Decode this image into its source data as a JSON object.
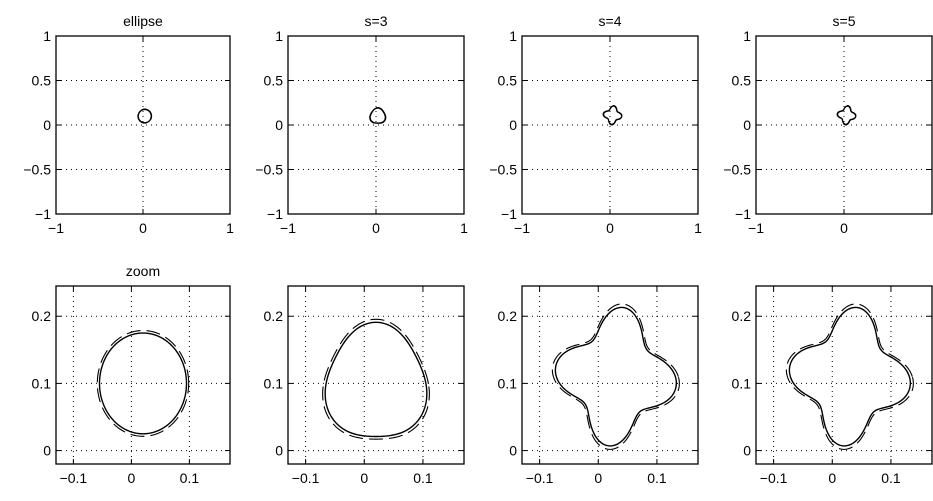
{
  "chart_data": [
    {
      "type": "line",
      "title": "ellipse",
      "xlim": [
        -1,
        1
      ],
      "ylim": [
        -1,
        1
      ],
      "xticks": [
        "-1",
        "0",
        "1"
      ],
      "yticks": [
        "1",
        "0.5",
        "0",
        "-0.5",
        "-1"
      ],
      "grid": true,
      "shape": {
        "cx": 0.02,
        "cy": 0.1,
        "r": 0.075,
        "amp": 0.0,
        "lobes": 0,
        "phase": 0,
        "rot": 0
      },
      "series": [
        {
          "style": "solid"
        },
        {
          "style": "dashed"
        }
      ]
    },
    {
      "type": "line",
      "title": "s=3",
      "xlim": [
        -1,
        1
      ],
      "ylim": [
        -1,
        1
      ],
      "xticks": [
        "-1",
        "0",
        "1"
      ],
      "yticks": [
        "1",
        "0.5",
        "0",
        "-0.5",
        "-1"
      ],
      "grid": true,
      "shape": {
        "cx": 0.02,
        "cy": 0.1,
        "r": 0.085,
        "amp": 0.07,
        "lobes": 3,
        "phase": 1.57,
        "rot": 0
      },
      "series": [
        {
          "style": "solid"
        },
        {
          "style": "dashed"
        }
      ]
    },
    {
      "type": "line",
      "title": "s=4",
      "xlim": [
        -1,
        1
      ],
      "ylim": [
        -1,
        1
      ],
      "xticks": [
        "-1",
        "0",
        "1"
      ],
      "yticks": [
        "1",
        "0.5",
        "0",
        "-0.5",
        "-1"
      ],
      "grid": true,
      "shape": {
        "cx": 0.03,
        "cy": 0.11,
        "r": 0.085,
        "amp": 0.22,
        "lobes": 4,
        "phase": 0.5,
        "rot": 0
      },
      "series": [
        {
          "style": "solid"
        },
        {
          "style": "dashed"
        }
      ]
    },
    {
      "type": "line",
      "title": "s=5",
      "xlim": [
        -1,
        1
      ],
      "ylim": [
        -1,
        1
      ],
      "xticks": [
        "-1",
        "0"
      ],
      "yticks": [
        "1",
        "0.5",
        "0",
        "-0.5",
        "-1"
      ],
      "grid": true,
      "shape": {
        "cx": 0.03,
        "cy": 0.11,
        "r": 0.085,
        "amp": 0.22,
        "lobes": 4,
        "phase": 0.5,
        "rot": 0
      },
      "series": [
        {
          "style": "solid"
        },
        {
          "style": "dashed"
        }
      ]
    },
    {
      "type": "line",
      "title": "zoom",
      "xlim": [
        -0.13,
        0.17
      ],
      "ylim": [
        -0.02,
        0.245
      ],
      "xticks": [
        "-0.1",
        "0",
        "0.1"
      ],
      "yticks": [
        "0.2",
        "0.1",
        "0"
      ],
      "grid": true,
      "shape": {
        "cx": 0.02,
        "cy": 0.1,
        "r": 0.075,
        "amp": 0.0,
        "lobes": 0,
        "phase": 0,
        "rot": 0
      },
      "series": [
        {
          "style": "solid"
        },
        {
          "style": "dashed"
        }
      ]
    },
    {
      "type": "line",
      "title": "",
      "xlim": [
        -0.13,
        0.17
      ],
      "ylim": [
        -0.02,
        0.245
      ],
      "xticks": [
        "-0.1",
        "0",
        "0.1"
      ],
      "yticks": [
        "0.2",
        "0.1",
        "0"
      ],
      "grid": true,
      "shape": {
        "cx": 0.02,
        "cy": 0.1,
        "r": 0.085,
        "amp": 0.07,
        "lobes": 3,
        "phase": 1.57,
        "rot": 0
      },
      "series": [
        {
          "style": "solid"
        },
        {
          "style": "dashed"
        }
      ]
    },
    {
      "type": "line",
      "title": "",
      "xlim": [
        -0.13,
        0.17
      ],
      "ylim": [
        -0.02,
        0.245
      ],
      "xticks": [
        "-0.1",
        "0",
        "0.1"
      ],
      "yticks": [
        "0.2",
        "0.1",
        "0"
      ],
      "grid": true,
      "shape": {
        "cx": 0.03,
        "cy": 0.11,
        "r": 0.085,
        "amp": 0.22,
        "lobes": 4,
        "phase": 0.5,
        "rot": 0
      },
      "series": [
        {
          "style": "solid"
        },
        {
          "style": "dashed"
        }
      ]
    },
    {
      "type": "line",
      "title": "",
      "xlim": [
        -0.13,
        0.17
      ],
      "ylim": [
        -0.02,
        0.245
      ],
      "xticks": [
        "-0.1",
        "0",
        "0.1"
      ],
      "yticks": [
        "0.2",
        "0.1",
        "0"
      ],
      "grid": true,
      "shape": {
        "cx": 0.03,
        "cy": 0.11,
        "r": 0.085,
        "amp": 0.22,
        "lobes": 4,
        "phase": 0.5,
        "rot": 0
      },
      "series": [
        {
          "style": "solid"
        },
        {
          "style": "dashed"
        }
      ]
    }
  ]
}
